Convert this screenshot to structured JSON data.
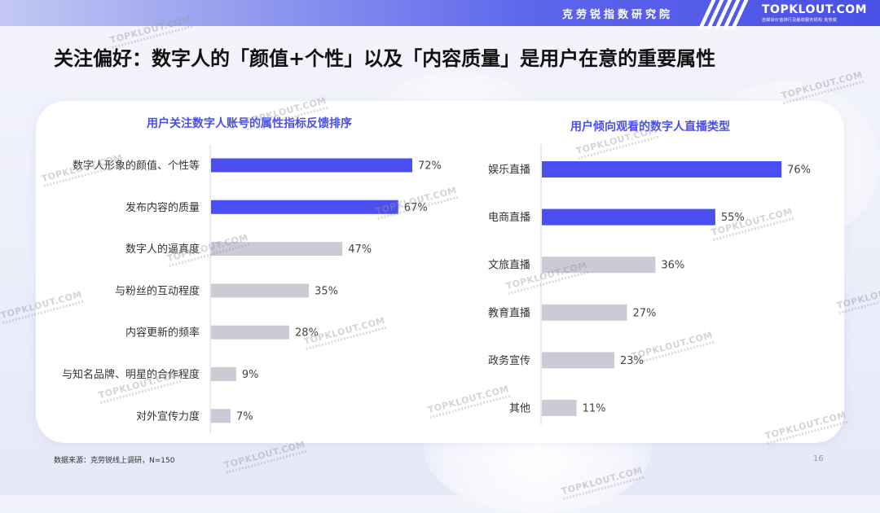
{
  "header": {
    "org_name": "克劳锐指数研究院",
    "logo_text": "TOPKLOUT.COM",
    "logo_subtitle": "自媒体价值排行及版权服务机构",
    "logo_subtitle_cn": "克劳锐"
  },
  "page_title": "关注偏好：数字人的「颜值+个性」以及「内容质量」是用户在意的重要属性",
  "watermark_text": "TOPKLOUT.COM",
  "footnote": "数据来源：克劳锐线上调研，N=150",
  "page_number": "16",
  "colors": {
    "highlight": "#4b4ef0",
    "normal": "#cbcbd6",
    "title": "#4a4ee6"
  },
  "chart_data": [
    {
      "type": "bar",
      "orientation": "horizontal",
      "title": "用户关注数字人账号的属性指标反馈排序",
      "categories": [
        "数字人形象的颜值、个性等",
        "发布内容的质量",
        "数字人的逼真度",
        "与粉丝的互动程度",
        "内容更新的频率",
        "与知名品牌、明星的合作程度",
        "对外宣传力度"
      ],
      "values": [
        72,
        67,
        47,
        35,
        28,
        9,
        7
      ],
      "value_labels": [
        "72%",
        "67%",
        "47%",
        "35%",
        "28%",
        "9%",
        "7%"
      ],
      "highlighted": [
        true,
        true,
        false,
        false,
        false,
        false,
        false
      ],
      "unit": "%"
    },
    {
      "type": "bar",
      "orientation": "horizontal",
      "title": "用户倾向观看的数字人直播类型",
      "categories": [
        "娱乐直播",
        "电商直播",
        "文旅直播",
        "教育直播",
        "政务宣传",
        "其他"
      ],
      "values": [
        76,
        55,
        36,
        27,
        23,
        11
      ],
      "value_labels": [
        "76%",
        "55%",
        "36%",
        "27%",
        "23%",
        "11%"
      ],
      "highlighted": [
        true,
        true,
        false,
        false,
        false,
        false
      ],
      "unit": "%"
    }
  ]
}
